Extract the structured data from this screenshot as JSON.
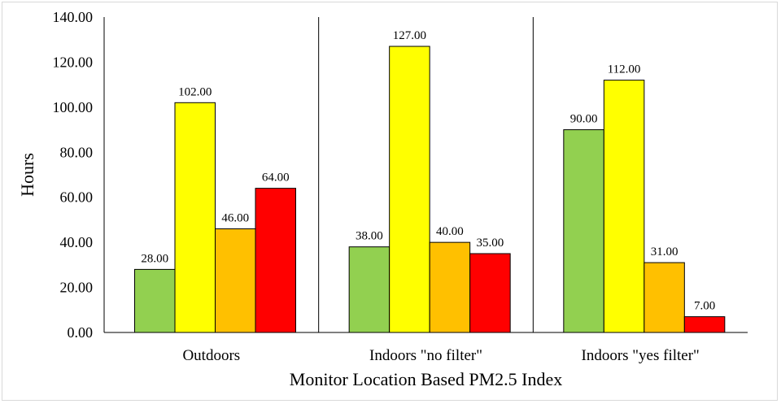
{
  "chart_data": {
    "type": "bar",
    "xlabel": "Monitor Location Based PM2.5 Index",
    "ylabel": "Hours",
    "ylim": [
      0,
      140
    ],
    "yticks": [
      "0.00",
      "20.00",
      "40.00",
      "60.00",
      "80.00",
      "100.00",
      "120.00",
      "140.00"
    ],
    "categories": [
      "Outdoors",
      "Indoors \"no filter\"",
      "Indoors \"yes filter\""
    ],
    "series": [
      {
        "color": "#92d050",
        "values": [
          28,
          38,
          90
        ],
        "labels": [
          "28.00",
          "38.00",
          "90.00"
        ]
      },
      {
        "color": "#ffff00",
        "values": [
          102,
          127,
          112
        ],
        "labels": [
          "102.00",
          "127.00",
          "112.00"
        ]
      },
      {
        "color": "#ffc000",
        "values": [
          46,
          40,
          31
        ],
        "labels": [
          "46.00",
          "40.00",
          "31.00"
        ]
      },
      {
        "color": "#ff0000",
        "values": [
          64,
          35,
          7
        ],
        "labels": [
          "64.00",
          "35.00",
          "7.00"
        ]
      }
    ],
    "grid": false,
    "legend": "none"
  }
}
